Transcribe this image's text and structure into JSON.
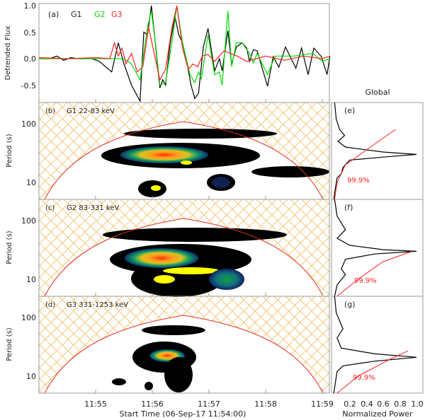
{
  "chart_data": [
    {
      "type": "line",
      "panel": "(a)",
      "ylabel": "Detrended Flux",
      "ylim": [
        -0.8,
        1.0
      ],
      "yticks": [
        "1.0",
        "0.5",
        "0.0",
        "-0.5"
      ],
      "x_unit": "seconds since 11:54:00",
      "series": [
        {
          "name": "G1",
          "color": "#000000",
          "points": [
            [
              0,
              0
            ],
            [
              11,
              0
            ],
            [
              19,
              0.05
            ],
            [
              26,
              -0.03
            ],
            [
              34,
              0.02
            ],
            [
              41,
              0
            ],
            [
              56,
              0
            ],
            [
              64,
              -0.05
            ],
            [
              77,
              -0.25
            ],
            [
              84,
              0.3
            ],
            [
              90,
              -0.1
            ],
            [
              98,
              -0.5
            ],
            [
              107,
              -0.8
            ],
            [
              111,
              0.5
            ],
            [
              115,
              0.45
            ],
            [
              119,
              1.0
            ],
            [
              122,
              0.5
            ],
            [
              128,
              -0.55
            ],
            [
              131,
              -0.4
            ],
            [
              134,
              -0.5
            ],
            [
              139,
              0.3
            ],
            [
              144,
              0.8
            ],
            [
              148,
              0.45
            ],
            [
              152,
              0.3
            ],
            [
              158,
              -0.2
            ],
            [
              161,
              -0.5
            ],
            [
              165,
              -0.75
            ],
            [
              169,
              -0.65
            ],
            [
              174,
              0.22
            ],
            [
              179,
              0.57
            ],
            [
              186,
              -0.23
            ],
            [
              191,
              0
            ],
            [
              194,
              -0.23
            ],
            [
              200,
              0.53
            ],
            [
              204,
              -0.1
            ],
            [
              209,
              0.22
            ],
            [
              215,
              0.3
            ],
            [
              220,
              0.2
            ],
            [
              223,
              -0.05
            ],
            [
              227,
              0.17
            ],
            [
              231,
              0.15
            ],
            [
              242,
              -0.52
            ],
            [
              248,
              0.04
            ],
            [
              254,
              -0.16
            ],
            [
              261,
              0.22
            ],
            [
              272,
              -0.18
            ],
            [
              278,
              0.2
            ],
            [
              285,
              -0.3
            ],
            [
              291,
              0.2
            ],
            [
              299,
              0.04
            ],
            [
              305,
              -0.3
            ],
            [
              308,
              0.04
            ]
          ]
        },
        {
          "name": "G2",
          "color": "#00dd00",
          "points": [
            [
              0,
              0
            ],
            [
              90,
              0
            ],
            [
              98,
              -0.1
            ],
            [
              107,
              -0.4
            ],
            [
              115,
              0.6
            ],
            [
              119,
              0.9
            ],
            [
              124,
              0.2
            ],
            [
              128,
              -0.5
            ],
            [
              134,
              -0.45
            ],
            [
              142,
              0.45
            ],
            [
              146,
              1.0
            ],
            [
              152,
              0.3
            ],
            [
              160,
              -0.3
            ],
            [
              165,
              -0.45
            ],
            [
              169,
              -0.25
            ],
            [
              172,
              -0.38
            ],
            [
              179,
              0.45
            ],
            [
              186,
              -0.3
            ],
            [
              191,
              -0.25
            ],
            [
              194,
              -0.5
            ],
            [
              200,
              0.9
            ],
            [
              204,
              -0.15
            ],
            [
              209,
              0.3
            ],
            [
              215,
              0.3
            ],
            [
              223,
              0.1
            ],
            [
              227,
              -0.08
            ],
            [
              231,
              0.1
            ],
            [
              242,
              -0.3
            ],
            [
              250,
              0.05
            ],
            [
              270,
              0.05
            ],
            [
              290,
              0.1
            ],
            [
              300,
              -0.05
            ],
            [
              308,
              0
            ]
          ]
        },
        {
          "name": "G3",
          "color": "#ff2020",
          "points": [
            [
              0,
              0.02
            ],
            [
              30,
              0
            ],
            [
              60,
              0.02
            ],
            [
              75,
              0
            ],
            [
              80,
              0.3
            ],
            [
              84,
              0.05
            ],
            [
              88,
              0.2
            ],
            [
              92,
              -0.1
            ],
            [
              98,
              0.1
            ],
            [
              104,
              -0.25
            ],
            [
              110,
              -0.15
            ],
            [
              116,
              0.6
            ],
            [
              122,
              0.1
            ],
            [
              128,
              -0.4
            ],
            [
              134,
              -0.2
            ],
            [
              141,
              0.6
            ],
            [
              146,
              1.0
            ],
            [
              152,
              0.2
            ],
            [
              158,
              -0.2
            ],
            [
              163,
              -0.1
            ],
            [
              168,
              -0.15
            ],
            [
              173,
              0.05
            ],
            [
              179,
              0.08
            ],
            [
              186,
              -0.05
            ],
            [
              196,
              0.15
            ],
            [
              205,
              0.08
            ],
            [
              210,
              0.05
            ],
            [
              220,
              -0.05
            ],
            [
              240,
              0.05
            ],
            [
              260,
              -0.03
            ],
            [
              280,
              0.05
            ],
            [
              300,
              0
            ],
            [
              308,
              0.05
            ]
          ]
        }
      ]
    },
    {
      "type": "heatmap",
      "panel": "(b)",
      "title": "G1 22-83 keV",
      "ylabel": "Period (s)",
      "yticks": [
        "100",
        "10"
      ],
      "significance_label": "99.9%"
    },
    {
      "type": "heatmap",
      "panel": "(c)",
      "title": "G2 83-331 keV",
      "ylabel": "Period (s)",
      "yticks": [
        "100",
        "10"
      ],
      "significance_label": "99.9%"
    },
    {
      "type": "heatmap",
      "panel": "(d)",
      "title": "G3 331-1253 keV",
      "ylabel": "Period (s)",
      "yticks": [
        "100",
        "10"
      ],
      "significance_label": "99.9%"
    },
    {
      "type": "line",
      "title": "Global",
      "xlabel": "Normalized Power",
      "xlim": [
        0,
        1.0
      ],
      "xticks": [
        "0.2",
        "0.4",
        "0.6",
        "0.8",
        "1.0"
      ],
      "panels": [
        {
          "panel": "(e)",
          "sig_label": "99.9%",
          "power": [
            [
              230,
              0.02
            ],
            [
              120,
              0.04
            ],
            [
              80,
              0.08
            ],
            [
              63,
              0.14
            ],
            [
              50,
              0.06
            ],
            [
              40,
              0.15
            ],
            [
              33,
              0.6
            ],
            [
              30,
              1.0
            ],
            [
              27,
              0.6
            ],
            [
              24,
              0.2
            ],
            [
              18,
              0.12
            ],
            [
              14,
              0.1
            ],
            [
              12,
              0.05
            ],
            [
              8,
              0.03
            ],
            [
              5,
              0.01
            ]
          ],
          "significance": [
            [
              80,
              0.75
            ],
            [
              40,
              0.45
            ],
            [
              20,
              0.15
            ],
            [
              10,
              0.05
            ],
            [
              5,
              0.02
            ]
          ]
        },
        {
          "panel": "(f)",
          "sig_label": "99.9%",
          "power": [
            [
              230,
              0.02
            ],
            [
              120,
              0.05
            ],
            [
              70,
              0.15
            ],
            [
              50,
              0.05
            ],
            [
              38,
              0.2
            ],
            [
              32,
              0.6
            ],
            [
              30,
              1.0
            ],
            [
              27,
              0.5
            ],
            [
              22,
              0.15
            ],
            [
              15,
              0.1
            ],
            [
              12,
              0.15
            ],
            [
              8,
              0.05
            ],
            [
              5,
              0.02
            ]
          ],
          "significance": [
            [
              30,
              0.95
            ],
            [
              20,
              0.6
            ],
            [
              10,
              0.3
            ],
            [
              5,
              0.05
            ]
          ]
        },
        {
          "panel": "(g)",
          "sig_label": "99.9%",
          "power": [
            [
              230,
              0.02
            ],
            [
              120,
              0.04
            ],
            [
              64,
              0.12
            ],
            [
              45,
              0.05
            ],
            [
              30,
              0.1
            ],
            [
              24,
              0.5
            ],
            [
              21,
              1.0
            ],
            [
              18,
              0.5
            ],
            [
              15,
              0.12
            ],
            [
              12,
              0.05
            ],
            [
              5,
              0.01
            ]
          ],
          "significance": [
            [
              27,
              0.9
            ],
            [
              20,
              0.7
            ],
            [
              10,
              0.3
            ],
            [
              5,
              0.05
            ]
          ]
        }
      ]
    }
  ],
  "xaxis": {
    "ticks": [
      "11:55",
      "11:56",
      "11:57",
      "11:58",
      "11:59"
    ],
    "label": "Start Time (06-Sep-17 11:54:00)"
  },
  "legend": {
    "panel": "(a)",
    "g1": "G1",
    "g2": "G2",
    "g3": "G3"
  },
  "global_title": "Global",
  "global_xlabel": "Normalized Power",
  "colors": {
    "hatch": "#f5c77a",
    "coi": "#e03020"
  }
}
